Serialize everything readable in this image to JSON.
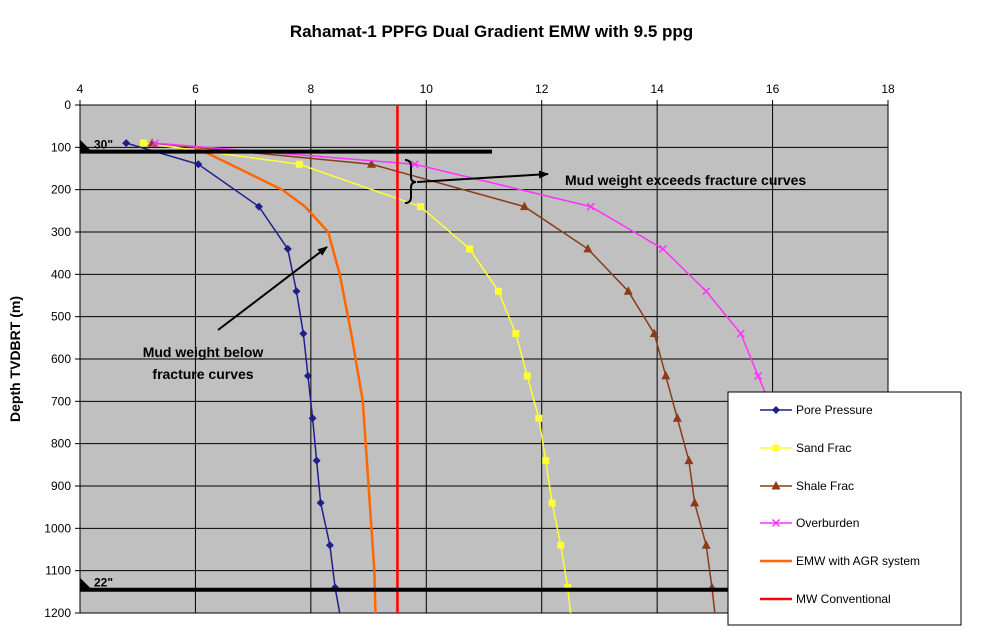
{
  "chart_data": {
    "type": "line",
    "title": "Rahamat-1 PPFG Dual Gradient EMW with 9.5 ppg",
    "xlabel": "",
    "ylabel": "Depth TVDBRT (m)",
    "xlim": [
      4,
      18
    ],
    "ylim": [
      0,
      1200
    ],
    "y_inverted": true,
    "x_axis_position": "top",
    "x_ticks": [
      "4",
      "6",
      "8",
      "10",
      "12",
      "14",
      "16",
      "18"
    ],
    "y_ticks": [
      "0",
      "100",
      "200",
      "300",
      "400",
      "500",
      "600",
      "700",
      "800",
      "900",
      "1000",
      "1100",
      "1200"
    ],
    "grid": true,
    "plot_background": "#c0c0c0",
    "legend_position": "bottom-right",
    "series": [
      {
        "name": "Pore Pressure",
        "color": "#1f1f8c",
        "marker": "diamond",
        "points": [
          [
            4.8,
            90
          ],
          [
            6.05,
            140
          ],
          [
            7.1,
            240
          ],
          [
            7.6,
            340
          ],
          [
            7.75,
            440
          ],
          [
            7.87,
            540
          ],
          [
            7.95,
            640
          ],
          [
            8.03,
            740
          ],
          [
            8.1,
            840
          ],
          [
            8.17,
            940
          ],
          [
            8.33,
            1040
          ],
          [
            8.42,
            1140
          ],
          [
            8.5,
            1200
          ]
        ]
      },
      {
        "name": "Sand Frac",
        "color": "#ffff33",
        "marker": "square",
        "points": [
          [
            5.1,
            90
          ],
          [
            7.8,
            140
          ],
          [
            9.9,
            240
          ],
          [
            10.75,
            340
          ],
          [
            11.25,
            440
          ],
          [
            11.55,
            540
          ],
          [
            11.75,
            640
          ],
          [
            11.95,
            740
          ],
          [
            12.07,
            840
          ],
          [
            12.18,
            940
          ],
          [
            12.33,
            1040
          ],
          [
            12.45,
            1140
          ],
          [
            12.5,
            1200
          ]
        ]
      },
      {
        "name": "Shale Frac",
        "color": "#8b3a1a",
        "marker": "triangle",
        "points": [
          [
            5.25,
            90
          ],
          [
            9.05,
            140
          ],
          [
            11.7,
            240
          ],
          [
            12.8,
            340
          ],
          [
            13.5,
            440
          ],
          [
            13.95,
            540
          ],
          [
            14.15,
            640
          ],
          [
            14.35,
            740
          ],
          [
            14.55,
            840
          ],
          [
            14.65,
            940
          ],
          [
            14.85,
            1040
          ],
          [
            14.95,
            1140
          ],
          [
            15.0,
            1200
          ]
        ]
      },
      {
        "name": "Overburden",
        "color": "#ff33ff",
        "marker": "x",
        "points": [
          [
            5.3,
            90
          ],
          [
            9.8,
            140
          ],
          [
            12.85,
            240
          ],
          [
            14.1,
            340
          ],
          [
            14.85,
            440
          ],
          [
            15.45,
            540
          ],
          [
            15.75,
            640
          ],
          [
            16.0,
            720
          ]
        ]
      },
      {
        "name": "EMW with AGR system",
        "color": "#ff6600",
        "marker": "none",
        "points": [
          [
            6.0,
            100
          ],
          [
            6.6,
            140
          ],
          [
            7.5,
            200
          ],
          [
            7.9,
            240
          ],
          [
            8.3,
            300
          ],
          [
            8.5,
            400
          ],
          [
            8.7,
            540
          ],
          [
            8.9,
            700
          ],
          [
            9.0,
            900
          ],
          [
            9.1,
            1100
          ],
          [
            9.12,
            1200
          ]
        ]
      },
      {
        "name": "MW Conventional",
        "color": "#ff0000",
        "marker": "none",
        "points": [
          [
            9.5,
            0
          ],
          [
            9.5,
            1200
          ]
        ]
      }
    ],
    "casing_shoes": [
      {
        "label": "30\"",
        "depth": 110
      },
      {
        "label": "22\"",
        "depth": 1145
      }
    ],
    "annotations": [
      {
        "text": "Mud weight exceeds fracture curves"
      },
      {
        "text_lines": [
          "Mud weight below",
          "fracture curves"
        ]
      }
    ]
  }
}
